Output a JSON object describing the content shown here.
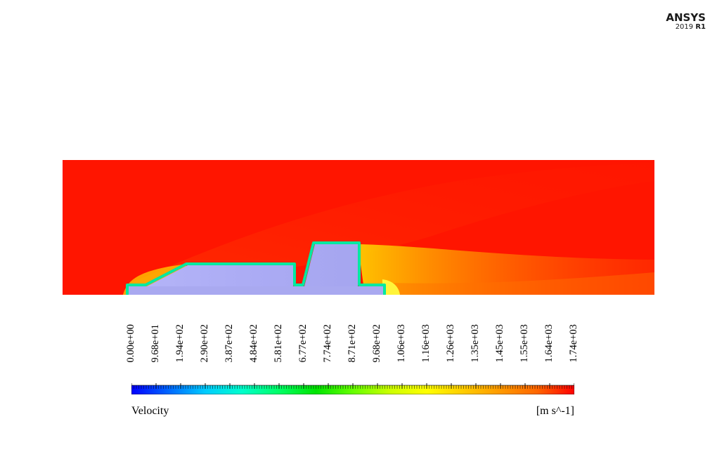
{
  "logo": {
    "name": "ANSYS",
    "version_year": "2019",
    "version_release": "R1"
  },
  "legend": {
    "title": "Velocity",
    "units": "[m s^-1]",
    "ticks": [
      "0.00e+00",
      "9.68e+01",
      "1.94e+02",
      "2.90e+02",
      "3.87e+02",
      "4.84e+02",
      "5.81e+02",
      "6.77e+02",
      "7.74e+02",
      "8.71e+02",
      "9.68e+02",
      "1.06e+03",
      "1.16e+03",
      "1.26e+03",
      "1.35e+03",
      "1.45e+03",
      "1.55e+03",
      "1.64e+03",
      "1.74e+03"
    ],
    "colormap": [
      "#0000ff",
      "#0066ff",
      "#00ccff",
      "#00ffcc",
      "#00ff66",
      "#00e400",
      "#66ff00",
      "#ccff00",
      "#ffff00",
      "#ffcc00",
      "#ff9900",
      "#ff6600",
      "#ff0000"
    ]
  },
  "plot": {
    "field_color": "#ff1500",
    "wake_color": "#ff8a00",
    "body_color": "#aeaef5"
  }
}
